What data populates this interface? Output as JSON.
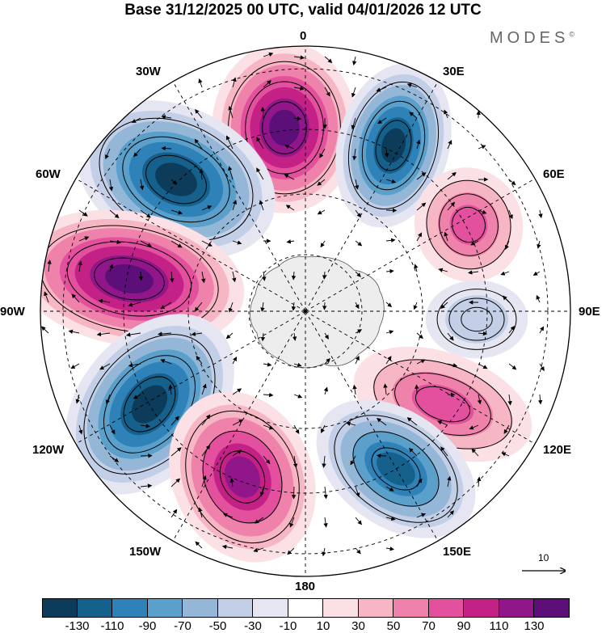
{
  "title": "Base 31/12/2025 00 UTC, valid 04/01/2026 12 UTC",
  "brand": "MODES",
  "brand_mark": "©",
  "longitude_labels": {
    "top": "0",
    "tr1": "30E",
    "tr2": "60E",
    "right": "90E",
    "br1": "120E",
    "br2": "150E",
    "bottom": "180",
    "bl1": "150W",
    "bl2": "120W",
    "left": "90W",
    "tl2": "60W",
    "tl1": "30W"
  },
  "reference_vector_label": "10",
  "colorbar": {
    "colors": [
      "#0d3b5a",
      "#15618c",
      "#2e82b8",
      "#5b9fcb",
      "#94b7d8",
      "#c3cfe6",
      "#e6e6f3",
      "#ffffff",
      "#fbe1e5",
      "#f7b6c4",
      "#ef82aa",
      "#e3509e",
      "#c32186",
      "#90168a",
      "#5c0f78"
    ],
    "tick_labels": [
      "-130",
      "-110",
      "-90",
      "-70",
      "-50",
      "-30",
      "-10",
      "10",
      "30",
      "50",
      "70",
      "90",
      "110",
      "130"
    ]
  },
  "chart_data": {
    "type": "heatmap",
    "projection": "south polar stereographic",
    "title": "Base 31/12/2025 00 UTC, valid 04/01/2026 12 UTC",
    "variable_levels": [
      -130,
      -110,
      -90,
      -70,
      -50,
      -30,
      -10,
      10,
      30,
      50,
      70,
      90,
      110,
      130
    ],
    "anomaly_centers": [
      {
        "near_longitude": "10W",
        "sign": "positive",
        "approx_value": 120
      },
      {
        "near_longitude": "25E",
        "sign": "negative",
        "approx_value": -120
      },
      {
        "near_longitude": "45W",
        "sign": "negative",
        "approx_value": -130
      },
      {
        "near_longitude": "65E",
        "sign": "positive",
        "approx_value": 70
      },
      {
        "near_longitude": "85W",
        "sign": "positive",
        "approx_value": 125
      },
      {
        "near_longitude": "95E",
        "sign": "negative",
        "approx_value": -40
      },
      {
        "near_longitude": "125W",
        "sign": "negative",
        "approx_value": -130
      },
      {
        "near_longitude": "120E",
        "sign": "positive",
        "approx_value": 80
      },
      {
        "near_longitude": "160W",
        "sign": "positive",
        "approx_value": 100
      },
      {
        "near_longitude": "150E",
        "sign": "negative",
        "approx_value": -100
      }
    ],
    "wind_reference_vector": 10
  }
}
